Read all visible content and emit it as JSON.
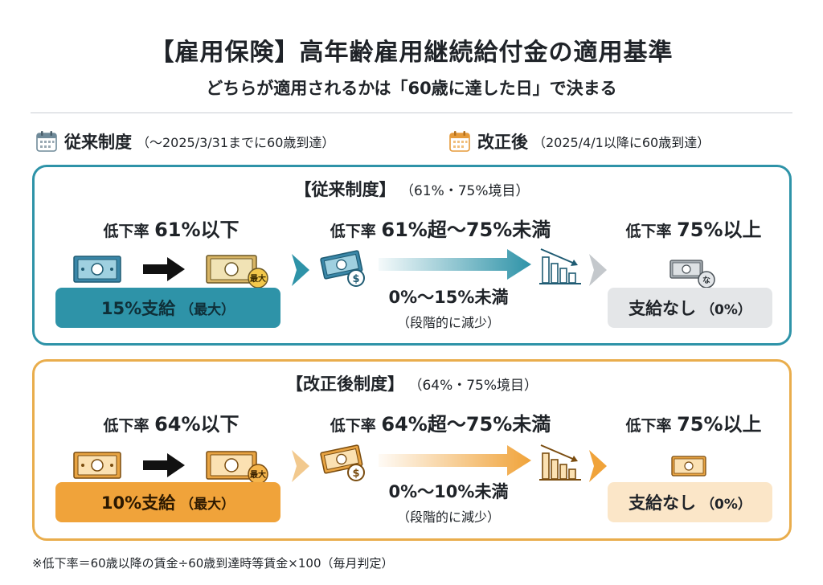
{
  "header": {
    "title": "【雇用保険】高年齢雇用継続給付金の適用基準",
    "subtitle": "どちらが適用されるかは「60歳に達した日」で決まる"
  },
  "legend": {
    "old": {
      "main": "従来制度",
      "sub": "（〜2025/3/31までに60歳到達）",
      "icon": "calendar-icon"
    },
    "new": {
      "main": "改正後",
      "sub": "（2025/4/1以降に60歳到達）",
      "icon": "calendar-icon"
    }
  },
  "panels": {
    "old": {
      "title": "【従来制度】",
      "threshold": "（61%・75%境目）",
      "col1": {
        "label": "低下率",
        "value": "61%以下"
      },
      "col2": {
        "label": "低下率",
        "value": "61%超〜75%未満"
      },
      "col3": {
        "label": "低下率",
        "value": "75%以上"
      },
      "pay": {
        "main": "15%支給",
        "sub": "（最大）"
      },
      "range": {
        "main": "0%〜15%未満",
        "sub": "（段階的に減少）"
      },
      "none": {
        "main": "支給なし",
        "sub": "（0%）"
      },
      "badge_max": "最大",
      "badge_none": "な",
      "accent": "#2e93a8"
    },
    "new": {
      "title": "【改正後制度】",
      "threshold": "（64%・75%境目）",
      "col1": {
        "label": "低下率",
        "value": "64%以下"
      },
      "col2": {
        "label": "低下率",
        "value": "64%超〜75%未満"
      },
      "col3": {
        "label": "低下率",
        "value": "75%以上"
      },
      "pay": {
        "main": "10%支給",
        "sub": "（最大）"
      },
      "range": {
        "main": "0%〜10%未満",
        "sub": "（段階的に減少）"
      },
      "none": {
        "main": "支給なし",
        "sub": "（0%）"
      },
      "badge_max": "最大",
      "accent": "#e9ad4c"
    }
  },
  "footnote": "※低下率＝60歳以降の賃金÷60歳到達時等賃金×100（毎月判定）",
  "colors": {
    "blue": "#2e93a8",
    "blue_dark": "#1d6f82",
    "orange": "#f0a33a",
    "orange_light": "#fbe6c8",
    "gray_pill": "#e4e6e8",
    "text": "#1f2328"
  }
}
